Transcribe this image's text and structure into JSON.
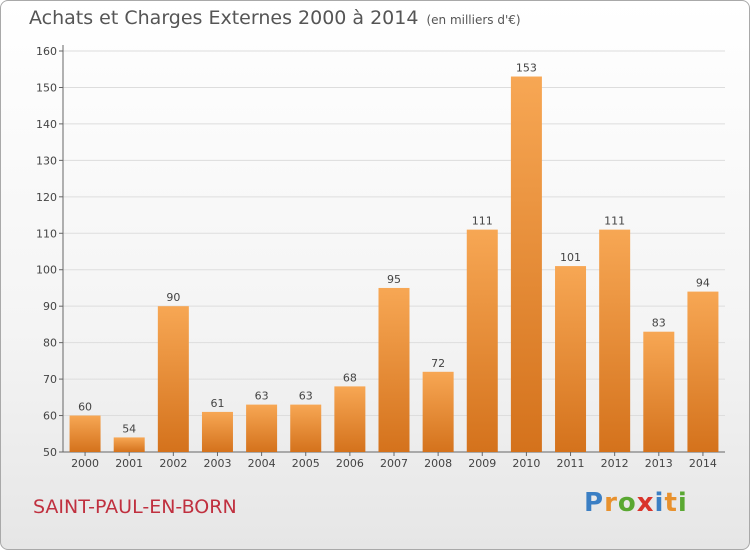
{
  "title": "Achats et Charges Externes 2000 à 2014",
  "subtitle": "(en milliers d'€)",
  "place_name": "SAINT-PAUL-EN-BORN",
  "logo": {
    "text": "Proxiti",
    "letters": [
      {
        "ch": "P",
        "color": "#3b7fc4"
      },
      {
        "ch": "r",
        "color": "#e8912d"
      },
      {
        "ch": "o",
        "color": "#5aa832"
      },
      {
        "ch": "x",
        "color": "#d9342b"
      },
      {
        "ch": "i",
        "color": "#3b7fc4"
      },
      {
        "ch": "t",
        "color": "#e8912d"
      },
      {
        "ch": "i",
        "color": "#5aa832"
      }
    ]
  },
  "colors": {
    "bar_light": "#f7a754",
    "bar_dark": "#d4721c",
    "grid": "#dddddd",
    "title": "#555555",
    "place": "#c0303f"
  },
  "chart_data": {
    "type": "bar",
    "categories": [
      "2000",
      "2001",
      "2002",
      "2003",
      "2004",
      "2005",
      "2006",
      "2007",
      "2008",
      "2009",
      "2010",
      "2011",
      "2012",
      "2013",
      "2014"
    ],
    "values": [
      60,
      54,
      90,
      61,
      63,
      63,
      68,
      95,
      72,
      111,
      153,
      101,
      111,
      83,
      94
    ],
    "ylim": [
      50,
      160
    ],
    "yticks": [
      50,
      60,
      70,
      80,
      90,
      100,
      110,
      120,
      130,
      140,
      150,
      160
    ],
    "grid": true,
    "data_labels": true
  }
}
